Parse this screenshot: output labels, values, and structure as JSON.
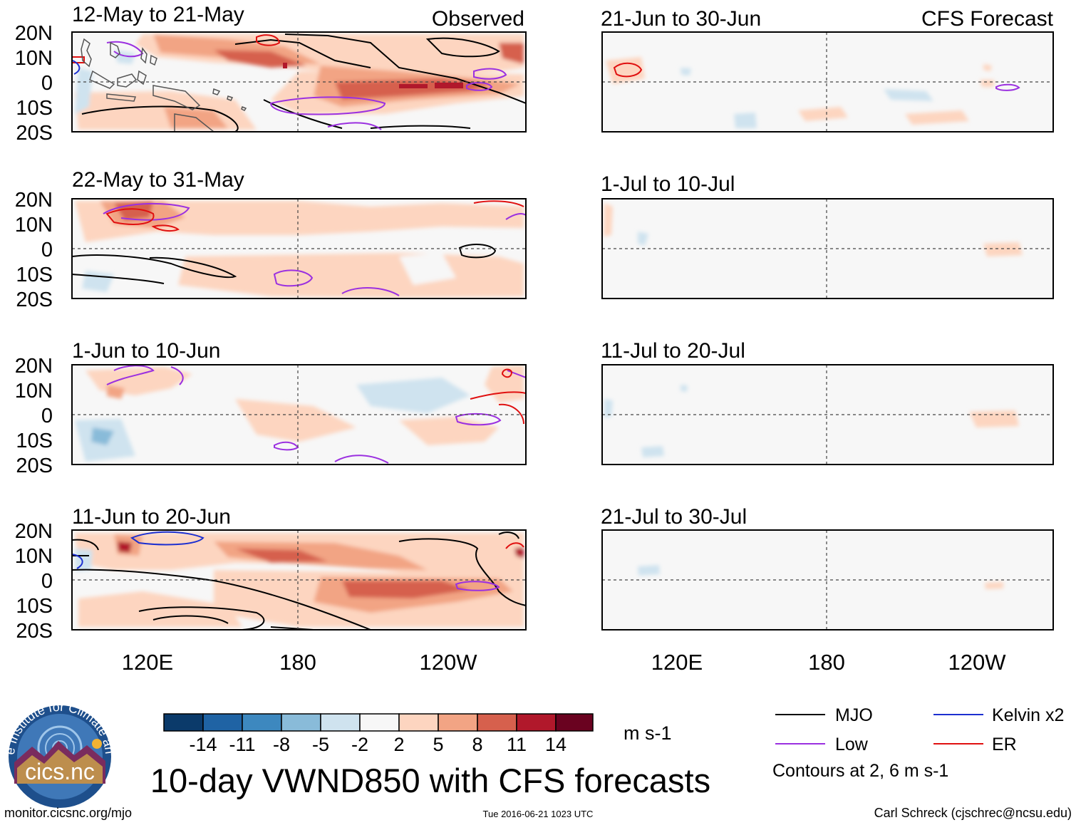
{
  "title": "10-day VWND850 with CFS forecasts",
  "headers": {
    "left": "Observed",
    "right": "CFS Forecast"
  },
  "panels": {
    "observed": [
      "12-May to 21-May",
      "22-May to 31-May",
      "1-Jun to 10-Jun",
      "11-Jun to 20-Jun"
    ],
    "forecast": [
      "21-Jun to 30-Jun",
      "1-Jul to 10-Jul",
      "11-Jul to 20-Jul",
      "21-Jul to 30-Jul"
    ]
  },
  "lat_labels": [
    "20N",
    "10N",
    "0",
    "10S",
    "20S"
  ],
  "lon_labels": [
    "120E",
    "180",
    "120W"
  ],
  "colorbar": {
    "ticks": [
      "-14",
      "-11",
      "-8",
      "-5",
      "-2",
      "2",
      "5",
      "8",
      "11",
      "14"
    ],
    "colors": [
      "#0b3a6a",
      "#1f63a4",
      "#3d88bf",
      "#89bbd9",
      "#cfe3ef",
      "#f7f7f7",
      "#fdd5c0",
      "#f2a484",
      "#d6604d",
      "#b1182b",
      "#6a0220"
    ],
    "unit": "m s-1"
  },
  "legend": {
    "items": [
      {
        "label": "MJO",
        "color": "#000000"
      },
      {
        "label": "Kelvin x2",
        "color": "#1c2fd0"
      },
      {
        "label": "Low",
        "color": "#9b30e0"
      },
      {
        "label": "ER",
        "color": "#e01010"
      }
    ],
    "contours_note": "Contours at 2, 6 m s-1"
  },
  "footer": {
    "logo_text": "cics.nc",
    "logo_ring_text": "Cooperative Institute for Climate and Satellites",
    "url": "monitor.cicsnc.org/mjo",
    "timestamp": "Tue 2016-06-21 1023 UTC",
    "credit": "Carl Schreck (cjschrec@ncsu.edu)"
  }
}
